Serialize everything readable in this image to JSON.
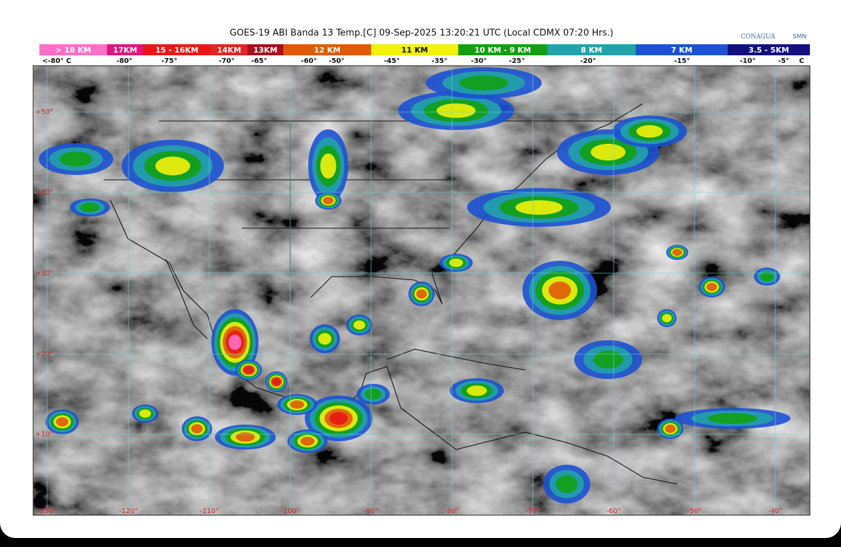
{
  "title": "GOES-19 ABI Banda 13 Temp.[C] 09-Sep-2025 13:20:21 UTC (Local CDMX  07:20 Hrs.)",
  "logos": [
    "CONAGUA",
    "SMN"
  ],
  "legend": [
    {
      "label": "> 18 KM",
      "color": "#ff6fc8"
    },
    {
      "label": "17KM",
      "color": "#e0157e"
    },
    {
      "label": "15 - 16KM",
      "color": "#e81818"
    },
    {
      "label": "14KM",
      "color": "#e02525"
    },
    {
      "label": "13KM",
      "color": "#a8101e"
    },
    {
      "label": "12 KM",
      "color": "#e05a05"
    },
    {
      "label": "11 KM",
      "color": "#f2f20a"
    },
    {
      "label": "10 KM - 9 KM",
      "color": "#12a012"
    },
    {
      "label": "8 KM",
      "color": "#22a2aa"
    },
    {
      "label": "7 KM",
      "color": "#1c52d2"
    },
    {
      "label": "3.5 - 5KM",
      "color": "#121080"
    }
  ],
  "temperatures": [
    "<-80° C",
    "-80°",
    "-75°",
    "-70°",
    "-65°",
    "-60°",
    "-50°",
    "-45°",
    "-35°",
    "-30°",
    "-25°",
    "-20°",
    "-15°",
    "-10°",
    "-5°",
    "C"
  ],
  "latitudes": [
    "+50°",
    "+40°",
    "+30°",
    "+20°",
    "+10°"
  ],
  "longitudes": [
    "-130°",
    "-120°",
    "-110°",
    "-100°",
    "-90°",
    "-80°",
    "-70°",
    "-60°",
    "-50°",
    "-40°"
  ]
}
